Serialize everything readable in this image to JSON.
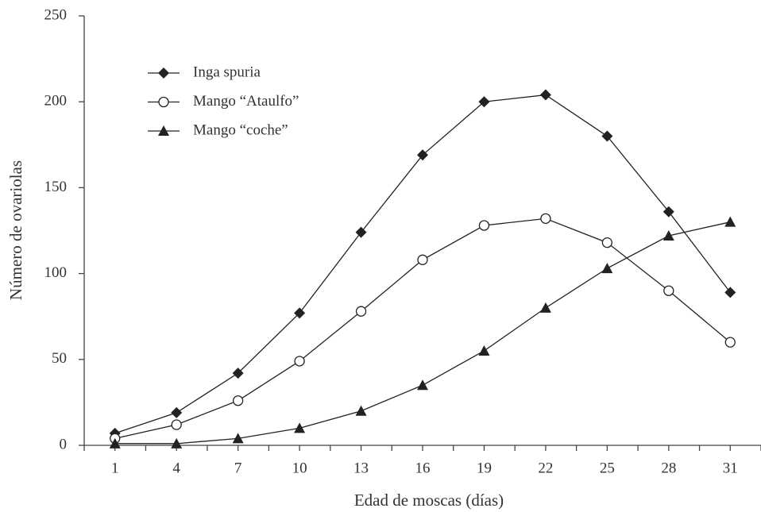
{
  "chart_data": {
    "type": "line",
    "x_label": "Edad de moscas (días)",
    "y_label": "Número de ovariolas",
    "categories": [
      "1",
      "4",
      "7",
      "10",
      "13",
      "16",
      "19",
      "22",
      "25",
      "28",
      "31"
    ],
    "series": [
      {
        "name": "Inga spuria",
        "color": "#222222",
        "marker": "diamond",
        "values": [
          7,
          19,
          42,
          77,
          124,
          169,
          200,
          204,
          180,
          136,
          89
        ]
      },
      {
        "name": "Mango “Ataulfo”",
        "color": "#222222",
        "marker": "circle-open",
        "values": [
          4,
          12,
          26,
          49,
          78,
          108,
          128,
          132,
          118,
          90,
          60
        ]
      },
      {
        "name": "Mango “coche”",
        "color": "#222222",
        "marker": "triangle",
        "values": [
          1,
          1,
          4,
          10,
          20,
          35,
          55,
          80,
          103,
          122,
          130
        ]
      }
    ],
    "ylim": [
      0,
      250
    ],
    "yticks": [
      0,
      50,
      100,
      150,
      200,
      250
    ],
    "grid": false,
    "legend": "upper left"
  }
}
